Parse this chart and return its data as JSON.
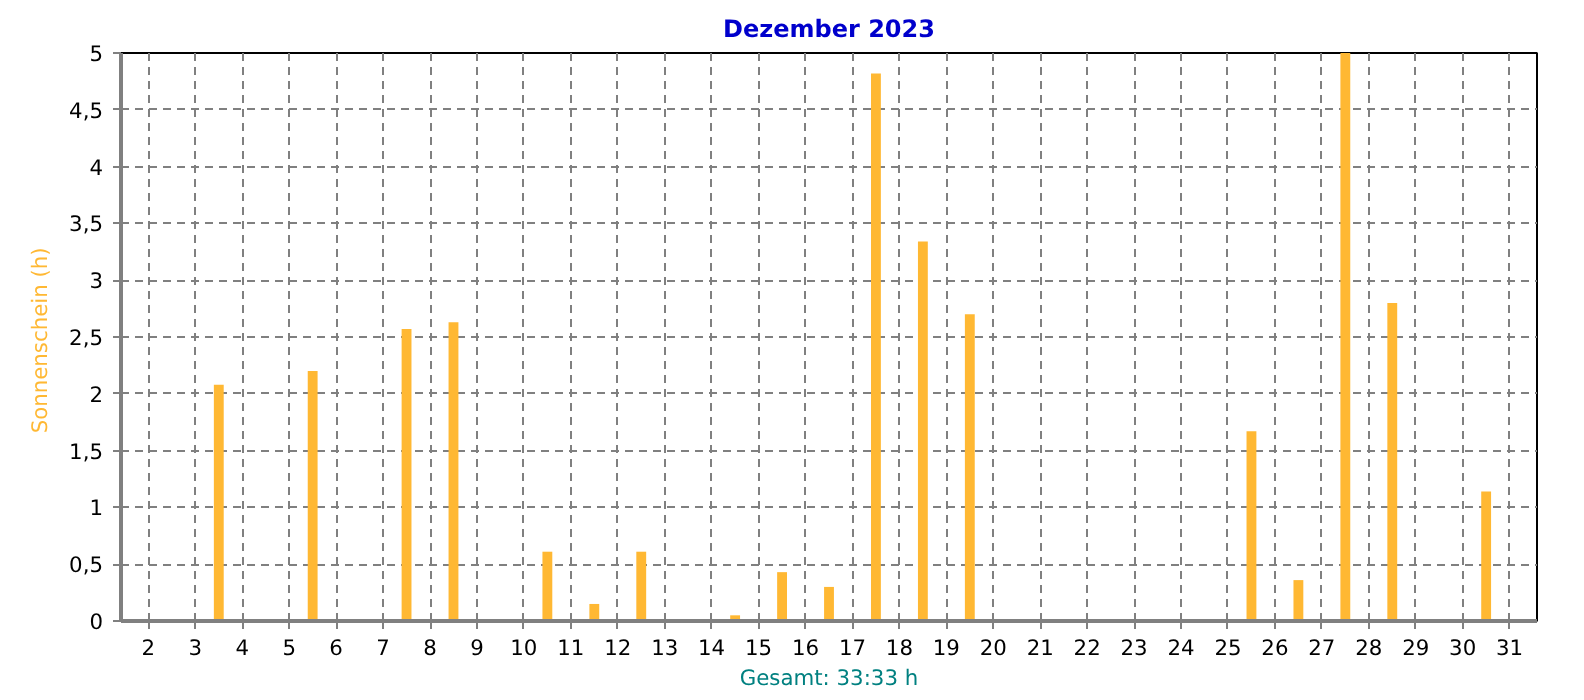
{
  "chart_data": {
    "type": "bar",
    "title": "Dezember 2023",
    "ylabel": "Sonnenschein  (h)",
    "xlabel": "Gesamt: 33:33 h",
    "x": [
      "2023-12-01T12:00",
      "2023-12-02T12:00",
      "2023-12-03T12:00",
      "2023-12-04T12:00",
      "2023-12-05T12:00",
      "2023-12-06T12:00",
      "2023-12-07T12:00",
      "2023-12-08T12:00",
      "2023-12-09T12:00",
      "2023-12-10T12:00",
      "2023-12-11T12:00",
      "2023-12-12T12:00",
      "2023-12-13T12:00",
      "2023-12-14T12:00",
      "2023-12-15T12:00",
      "2023-12-16T12:00",
      "2023-12-17T12:00",
      "2023-12-18T12:00",
      "2023-12-19T12:00",
      "2023-12-20T12:00",
      "2023-12-21T12:00",
      "2023-12-22T12:00",
      "2023-12-23T12:00",
      "2023-12-24T12:00",
      "2023-12-25T12:00",
      "2023-12-26T12:00",
      "2023-12-27T12:00",
      "2023-12-28T12:00",
      "2023-12-29T12:00",
      "2023-12-30T12:00",
      "2023-12-31T12:00"
    ],
    "series": [
      {
        "color": "#ffb833",
        "values": [
          0,
          0,
          2.08,
          0,
          2.2,
          0,
          2.57,
          2.63,
          0,
          0.61,
          0.15,
          0.61,
          0,
          0.05,
          0.43,
          0.3,
          4.82,
          3.34,
          2.7,
          0,
          0,
          0,
          0,
          0,
          1.67,
          0.36,
          5.0,
          2.8,
          0,
          1.14,
          0
        ]
      }
    ],
    "xlim": [
      "2023-12-01T10:00",
      "2023-12-31T14:00"
    ],
    "xticks": [
      {
        "value": "2023-12-02",
        "label": "2"
      },
      {
        "value": "2023-12-03",
        "label": "3"
      },
      {
        "value": "2023-12-04",
        "label": "4"
      },
      {
        "value": "2023-12-05",
        "label": "5"
      },
      {
        "value": "2023-12-06",
        "label": "6"
      },
      {
        "value": "2023-12-07",
        "label": "7"
      },
      {
        "value": "2023-12-08",
        "label": "8"
      },
      {
        "value": "2023-12-09",
        "label": "9"
      },
      {
        "value": "2023-12-10",
        "label": "10"
      },
      {
        "value": "2023-12-11",
        "label": "11"
      },
      {
        "value": "2023-12-12",
        "label": "12"
      },
      {
        "value": "2023-12-13",
        "label": "13"
      },
      {
        "value": "2023-12-14",
        "label": "14"
      },
      {
        "value": "2023-12-15",
        "label": "15"
      },
      {
        "value": "2023-12-16",
        "label": "16"
      },
      {
        "value": "2023-12-17",
        "label": "17"
      },
      {
        "value": "2023-12-18",
        "label": "18"
      },
      {
        "value": "2023-12-19",
        "label": "19"
      },
      {
        "value": "2023-12-20",
        "label": "20"
      },
      {
        "value": "2023-12-21",
        "label": "21"
      },
      {
        "value": "2023-12-22",
        "label": "22"
      },
      {
        "value": "2023-12-23",
        "label": "23"
      },
      {
        "value": "2023-12-24",
        "label": "24"
      },
      {
        "value": "2023-12-25",
        "label": "25"
      },
      {
        "value": "2023-12-26",
        "label": "26"
      },
      {
        "value": "2023-12-27",
        "label": "27"
      },
      {
        "value": "2023-12-28",
        "label": "28"
      },
      {
        "value": "2023-12-29",
        "label": "29"
      },
      {
        "value": "2023-12-30",
        "label": "30"
      },
      {
        "value": "2023-12-31",
        "label": "31"
      }
    ],
    "ylim": [
      0,
      5
    ],
    "yticks": [
      0,
      {
        "value": 0.5,
        "label": "0,5"
      },
      1,
      {
        "value": 1.5,
        "label": "1,5"
      },
      2,
      {
        "value": 2.5,
        "label": "2,5"
      },
      3,
      {
        "value": 3.5,
        "label": "3,5"
      },
      4,
      {
        "value": 4.5,
        "label": "4,5"
      },
      5
    ],
    "grid": true
  }
}
